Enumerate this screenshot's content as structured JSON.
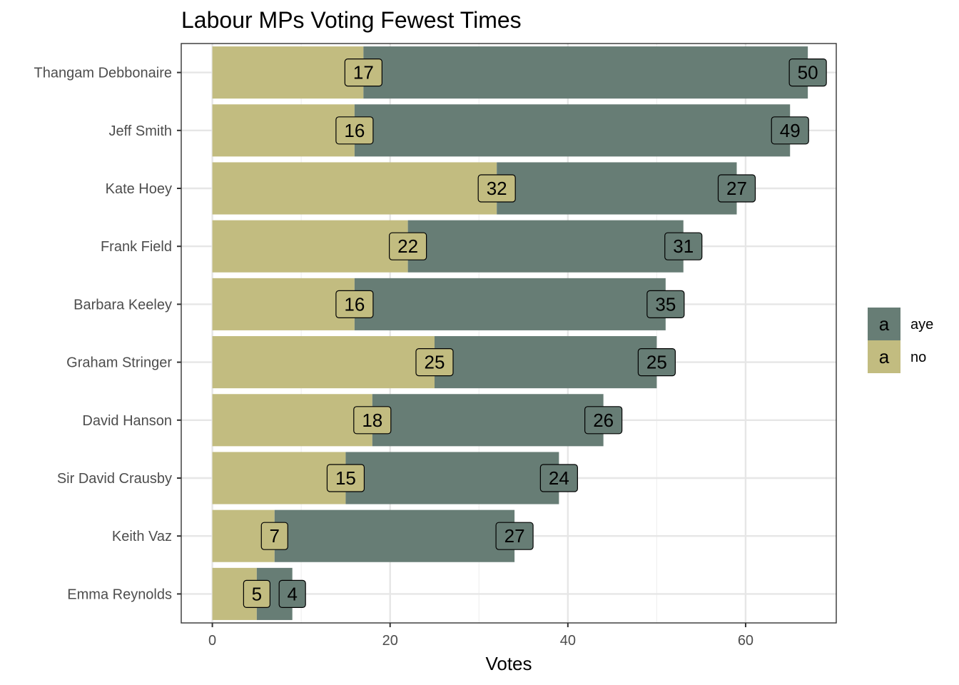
{
  "chart_data": {
    "type": "bar",
    "orientation": "horizontal",
    "stacked": true,
    "title": "Labour MPs Voting Fewest Times",
    "xlabel": "Votes",
    "ylabel": "",
    "xlim": [
      -3.5,
      70.2
    ],
    "x_ticks": [
      0,
      20,
      40,
      60
    ],
    "grid": true,
    "legend_position": "right",
    "legend_key_glyph": "a",
    "categories": [
      "Thangam Debbonaire",
      "Jeff Smith",
      "Kate Hoey",
      "Frank Field",
      "Barbara Keeley",
      "Graham Stringer",
      "David Hanson",
      "Sir David Crausby",
      "Keith Vaz",
      "Emma Reynolds"
    ],
    "series": [
      {
        "name": "no",
        "color": "#c2bc80",
        "values": [
          17,
          16,
          32,
          22,
          16,
          25,
          18,
          15,
          7,
          5
        ]
      },
      {
        "name": "aye",
        "color": "#677d75",
        "values": [
          50,
          49,
          27,
          31,
          35,
          25,
          26,
          24,
          27,
          4
        ]
      }
    ],
    "legend_order": [
      "aye",
      "no"
    ]
  }
}
